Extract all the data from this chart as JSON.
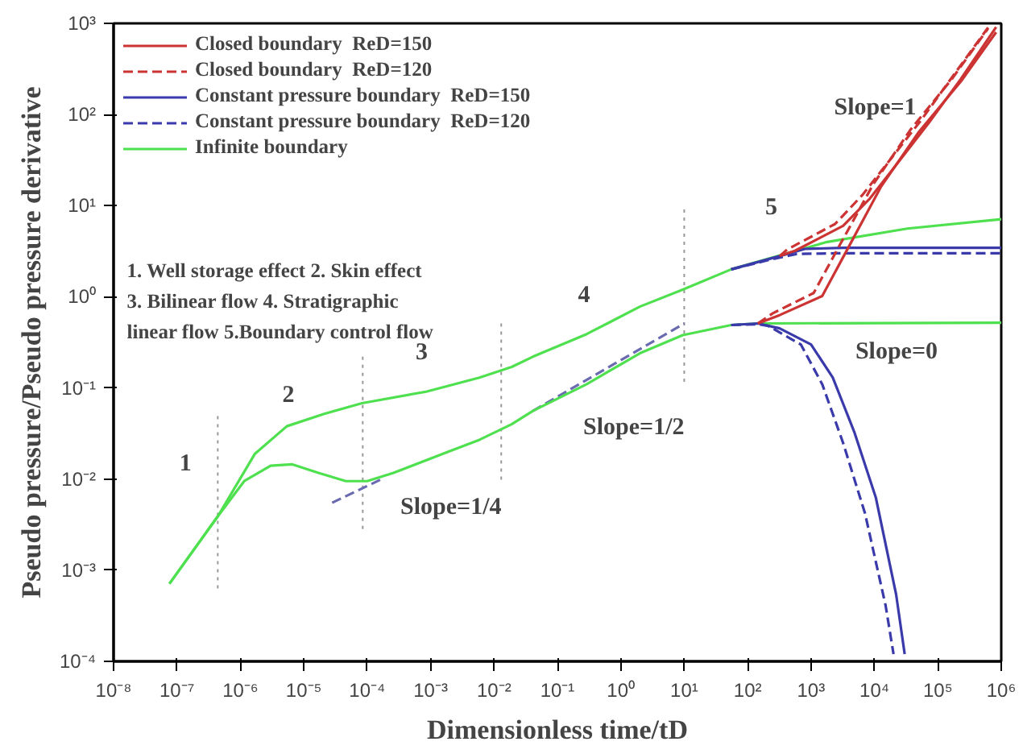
{
  "chart_data": {
    "type": "line",
    "xlabel": "Dimensionless time/tD",
    "ylabel": "Pseudo pressure/Pseudo pressure derivative",
    "log": "xy",
    "grid": false,
    "legend": "top left",
    "xlim": [
      1e-08,
      1000000.0
    ],
    "ylim": [
      0.0001,
      1000.0
    ],
    "xticks": [
      {
        "value": 1e-08,
        "label": "10⁻⁸"
      },
      {
        "value": 1e-07,
        "label": "10⁻⁷"
      },
      {
        "value": 1e-06,
        "label": "10⁻⁶"
      },
      {
        "value": 1e-05,
        "label": "10⁻⁵"
      },
      {
        "value": 0.0001,
        "label": "10⁻⁴"
      },
      {
        "value": 0.001,
        "label": "10⁻³"
      },
      {
        "value": 0.01,
        "label": "10⁻²"
      },
      {
        "value": 0.1,
        "label": "10⁻¹"
      },
      {
        "value": 1,
        "label": "10⁰"
      },
      {
        "value": 10,
        "label": "10¹"
      },
      {
        "value": 100,
        "label": "10²"
      },
      {
        "value": 1000,
        "label": "10³"
      },
      {
        "value": 10000.0,
        "label": "10⁴"
      },
      {
        "value": 100000.0,
        "label": "10⁵"
      },
      {
        "value": 1000000.0,
        "label": "10⁶"
      }
    ],
    "yticks": [
      {
        "value": 0.0001,
        "label": "10⁻⁴"
      },
      {
        "value": 0.001,
        "label": "10⁻³"
      },
      {
        "value": 0.01,
        "label": "10⁻²"
      },
      {
        "value": 0.1,
        "label": "10⁻¹"
      },
      {
        "value": 1,
        "label": "10⁰"
      },
      {
        "value": 10,
        "label": "10¹"
      },
      {
        "value": 100,
        "label": "10²"
      },
      {
        "value": 1000,
        "label": "10³"
      }
    ],
    "series": [
      {
        "name": "Closed boundary  ReD=150",
        "color": "#cc3333",
        "line_style": "solid",
        "x": [
          320,
          560,
          3200,
          8500,
          22000,
          72000,
          230000,
          830000
        ],
        "values": [
          2.8,
          3.2,
          6.0,
          12,
          28,
          81,
          245,
          910
        ]
      },
      {
        "color": "#cc3333",
        "line_style": "solid",
        "x": [
          145,
          320,
          1500,
          3900,
          12600,
          49000,
          230000,
          830000
        ],
        "values": [
          0.51,
          0.63,
          1.02,
          3.5,
          16,
          63,
          230,
          800
        ]
      },
      {
        "name": "Closed boundary  ReD=120",
        "color": "#cc3333",
        "line_style": "dashed",
        "x": [
          320,
          420,
          2400,
          6400,
          16500,
          54000,
          170000,
          620000
        ],
        "values": [
          2.8,
          3.3,
          6.3,
          13,
          30,
          86,
          260,
          900
        ]
      },
      {
        "color": "#cc3333",
        "line_style": "dashed",
        "x": [
          145,
          250,
          1100,
          2900,
          9500,
          37000,
          170000,
          620000
        ],
        "values": [
          0.51,
          0.66,
          1.1,
          3.8,
          17,
          68,
          250,
          880
        ]
      },
      {
        "name": "Constant pressure boundary  ReD=150",
        "color": "#3a3aaa",
        "line_style": "solid",
        "x": [
          55,
          320,
          800,
          3200,
          1000000
        ],
        "values": [
          2.0,
          2.8,
          3.35,
          3.45,
          3.45
        ]
      },
      {
        "color": "#3a3aaa",
        "line_style": "solid",
        "x": [
          55,
          145,
          320,
          1000,
          2200,
          4800,
          10500,
          22000,
          30000
        ],
        "values": [
          0.49,
          0.51,
          0.45,
          0.3,
          0.13,
          0.033,
          0.0063,
          0.00054,
          0.00012
        ]
      },
      {
        "name": "Constant pressure boundary  ReD=120",
        "color": "#3a3aaa",
        "line_style": "dashed",
        "x": [
          55,
          250,
          600,
          2400,
          1000000
        ],
        "values": [
          2.0,
          2.6,
          2.95,
          3.0,
          3.0
        ]
      },
      {
        "color": "#3a3aaa",
        "line_style": "dashed",
        "x": [
          55,
          145,
          210,
          690,
          1500,
          3200,
          7100,
          15000,
          20000
        ],
        "values": [
          0.49,
          0.5,
          0.48,
          0.3,
          0.11,
          0.025,
          0.0042,
          0.00041,
          0.00012
        ]
      },
      {
        "name": "Infinite boundary",
        "color": "#4fe04f",
        "line_style": "solid",
        "x": [
          7.6e-08,
          4.4e-07,
          1.7e-06,
          5.4e-06,
          2.1e-05,
          8.3e-05,
          0.00085,
          0.0059,
          0.019,
          0.041,
          0.29,
          2.0,
          9.5,
          55,
          1800,
          33000,
          1000000
        ],
        "values": [
          0.00071,
          0.0039,
          0.019,
          0.038,
          0.052,
          0.068,
          0.091,
          0.13,
          0.17,
          0.22,
          0.39,
          0.78,
          1.2,
          2.0,
          4.0,
          5.6,
          7.1
        ]
      },
      {
        "color": "#4fe04f",
        "line_style": "solid",
        "x": [
          7.6e-08,
          4.4e-07,
          1.15e-06,
          3e-06,
          6.6e-06,
          1.7e-05,
          4.6e-05,
          0.0001,
          0.00026,
          0.0019,
          0.0059,
          0.019,
          0.041,
          0.29,
          2.0,
          9.5,
          55,
          145,
          1000000
        ],
        "values": [
          0.00071,
          0.0039,
          0.0095,
          0.014,
          0.0145,
          0.0117,
          0.0095,
          0.0095,
          0.0117,
          0.02,
          0.027,
          0.04,
          0.056,
          0.11,
          0.24,
          0.38,
          0.49,
          0.51,
          0.52
        ]
      },
      {
        "color": "#6a6ab0",
        "line_style": "dashed",
        "x": [
          2.8e-05,
          0.00018
        ],
        "values": [
          0.0055,
          0.0102
        ]
      },
      {
        "color": "#6a6ab0",
        "line_style": "dashed",
        "x": [
          0.041,
          10
        ],
        "values": [
          0.056,
          0.51
        ]
      },
      {
        "color": "#999999",
        "line_style": "dotted",
        "x": [
          4.4e-07,
          4.4e-07
        ],
        "values": [
          0.049,
          0.00058
        ]
      },
      {
        "color": "#999999",
        "line_style": "dotted",
        "x": [
          8.5e-05,
          8.5e-05
        ],
        "values": [
          0.22,
          0.0026
        ]
      },
      {
        "color": "#999999",
        "line_style": "dotted",
        "x": [
          0.013,
          0.013
        ],
        "values": [
          0.51,
          0.0095
        ]
      },
      {
        "color": "#999999",
        "line_style": "dotted",
        "x": [
          10,
          10
        ],
        "values": [
          9.1,
          0.11
        ]
      }
    ],
    "annotations": [
      "1. Well storage effect 2. Skin effect\n3. Bilinear flow 4. Stratigraphic\nlinear flow 5.Boundary control flow",
      "1",
      "2",
      "3",
      "4",
      "5",
      "Slope=1/4",
      "Slope=1/2",
      "Slope=0",
      "Slope=1"
    ]
  }
}
